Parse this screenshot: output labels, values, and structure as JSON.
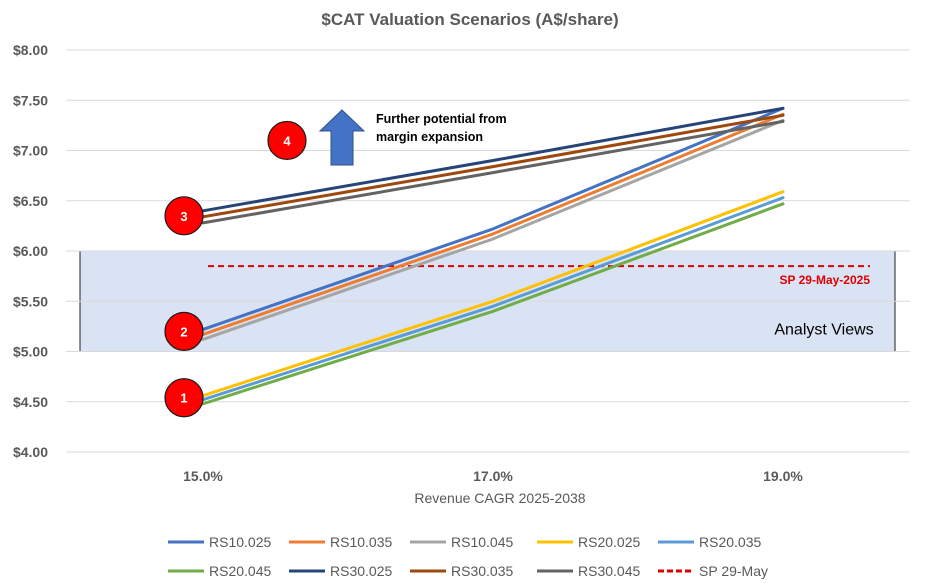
{
  "chart_data": {
    "type": "line",
    "title": "$CAT Valuation Scenarios (A$/share)",
    "xlabel": "Revenue CAGR 2025-2038",
    "ylabel": "",
    "categories": [
      "15.0%",
      "17.0%",
      "19.0%"
    ],
    "ylim": [
      4.0,
      8.0
    ],
    "ytick_values": [
      4.0,
      4.5,
      5.0,
      5.5,
      6.0,
      6.5,
      7.0,
      7.5,
      8.0
    ],
    "ytick_labels": [
      "$4.00",
      "$4.50",
      "$5.00",
      "$5.50",
      "$6.00",
      "$6.50",
      "$7.00",
      "$7.50",
      "$8.00"
    ],
    "grid": true,
    "series": [
      {
        "name": "RS10.025",
        "color": "#4472C4",
        "values": [
          5.22,
          6.22,
          7.42
        ]
      },
      {
        "name": "RS10.035",
        "color": "#ED7D31",
        "values": [
          5.17,
          6.17,
          7.36
        ]
      },
      {
        "name": "RS10.045",
        "color": "#A5A5A5",
        "values": [
          5.12,
          6.12,
          7.3
        ]
      },
      {
        "name": "RS20.025",
        "color": "#FFC000",
        "values": [
          4.56,
          5.5,
          6.59
        ]
      },
      {
        "name": "RS20.035",
        "color": "#5B9BD5",
        "values": [
          4.52,
          5.45,
          6.53
        ]
      },
      {
        "name": "RS20.045",
        "color": "#70AD47",
        "values": [
          4.48,
          5.4,
          6.47
        ]
      },
      {
        "name": "RS30.025",
        "color": "#264478",
        "values": [
          6.4,
          6.9,
          7.42
        ]
      },
      {
        "name": "RS30.035",
        "color": "#9E480E",
        "values": [
          6.34,
          6.84,
          7.35
        ]
      },
      {
        "name": "RS30.045",
        "color": "#636363",
        "values": [
          6.28,
          6.78,
          7.29
        ]
      }
    ],
    "reference_line": {
      "name": "SP 29-May",
      "label": "SP 29-May-2025",
      "value": 5.85,
      "color": "#e00000",
      "style": "dashed"
    },
    "band": {
      "label": "Analyst Views",
      "from": 5.0,
      "to": 6.0,
      "color": "#dae3f3"
    },
    "badges": [
      {
        "label": "1",
        "category_index": 0,
        "value": 4.54
      },
      {
        "label": "2",
        "category_index": 0,
        "value": 5.2
      },
      {
        "label": "3",
        "category_index": 0,
        "value": 6.35
      },
      {
        "label": "4",
        "category_index": 0.55,
        "value": 7.1
      }
    ],
    "annotation": {
      "line1": "Further potential from",
      "line2": "margin expansion",
      "arrow": "up"
    },
    "legend_position": "bottom"
  }
}
